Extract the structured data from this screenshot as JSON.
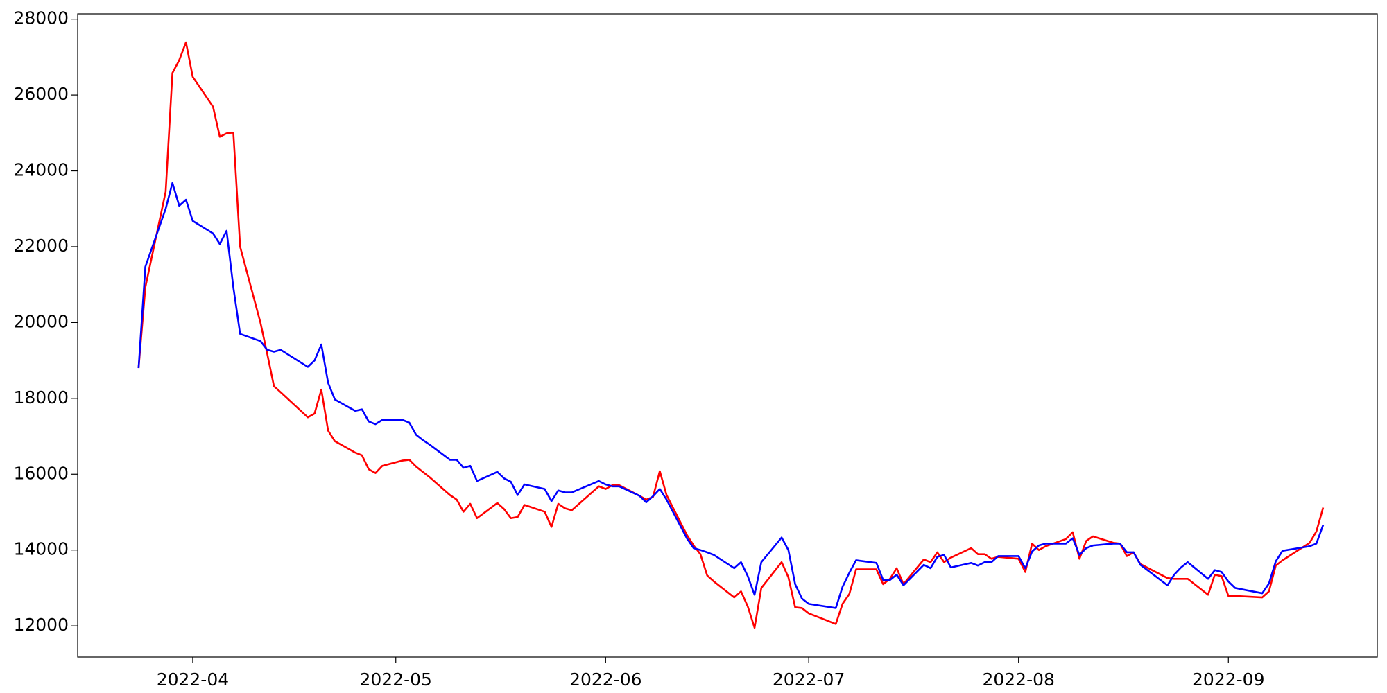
{
  "chart_data": {
    "type": "line",
    "x": [
      "2022-03-24",
      "2022-03-25",
      "2022-03-28",
      "2022-03-29",
      "2022-03-30",
      "2022-03-31",
      "2022-04-01",
      "2022-04-04",
      "2022-04-05",
      "2022-04-06",
      "2022-04-07",
      "2022-04-08",
      "2022-04-11",
      "2022-04-12",
      "2022-04-13",
      "2022-04-14",
      "2022-04-18",
      "2022-04-19",
      "2022-04-20",
      "2022-04-21",
      "2022-04-22",
      "2022-04-25",
      "2022-04-26",
      "2022-04-27",
      "2022-04-28",
      "2022-04-29",
      "2022-05-02",
      "2022-05-03",
      "2022-05-04",
      "2022-05-05",
      "2022-05-06",
      "2022-05-09",
      "2022-05-10",
      "2022-05-11",
      "2022-05-12",
      "2022-05-13",
      "2022-05-16",
      "2022-05-17",
      "2022-05-18",
      "2022-05-19",
      "2022-05-20",
      "2022-05-23",
      "2022-05-24",
      "2022-05-25",
      "2022-05-26",
      "2022-05-27",
      "2022-05-31",
      "2022-06-01",
      "2022-06-02",
      "2022-06-03",
      "2022-06-06",
      "2022-06-07",
      "2022-06-08",
      "2022-06-09",
      "2022-06-10",
      "2022-06-13",
      "2022-06-14",
      "2022-06-15",
      "2022-06-16",
      "2022-06-17",
      "2022-06-20",
      "2022-06-21",
      "2022-06-22",
      "2022-06-23",
      "2022-06-24",
      "2022-06-27",
      "2022-06-28",
      "2022-06-29",
      "2022-06-30",
      "2022-07-01",
      "2022-07-05",
      "2022-07-06",
      "2022-07-07",
      "2022-07-08",
      "2022-07-11",
      "2022-07-12",
      "2022-07-13",
      "2022-07-14",
      "2022-07-15",
      "2022-07-18",
      "2022-07-19",
      "2022-07-20",
      "2022-07-21",
      "2022-07-22",
      "2022-07-25",
      "2022-07-26",
      "2022-07-27",
      "2022-07-28",
      "2022-07-29",
      "2022-08-01",
      "2022-08-02",
      "2022-08-03",
      "2022-08-04",
      "2022-08-05",
      "2022-08-08",
      "2022-08-09",
      "2022-08-10",
      "2022-08-11",
      "2022-08-12",
      "2022-08-15",
      "2022-08-16",
      "2022-08-17",
      "2022-08-18",
      "2022-08-19",
      "2022-08-23",
      "2022-08-24",
      "2022-08-25",
      "2022-08-26",
      "2022-08-29",
      "2022-08-30",
      "2022-08-31",
      "2022-09-01",
      "2022-09-02",
      "2022-09-06",
      "2022-09-07",
      "2022-09-08",
      "2022-09-09",
      "2022-09-13",
      "2022-09-14",
      "2022-09-15"
    ],
    "series": [
      {
        "color": "#ff0000",
        "values": [
          18800,
          20930,
          23450,
          26580,
          26920,
          27390,
          26480,
          25690,
          24900,
          24990,
          25010,
          22000,
          20000,
          19180,
          18320,
          18160,
          17500,
          17600,
          18230,
          17150,
          16870,
          16570,
          16500,
          16130,
          16030,
          16220,
          16360,
          16380,
          16200,
          16060,
          15920,
          15450,
          15330,
          15010,
          15220,
          14840,
          15240,
          15080,
          14840,
          14870,
          15190,
          15010,
          14610,
          15220,
          15100,
          15050,
          15680,
          15610,
          15710,
          15710,
          15430,
          15330,
          15400,
          16080,
          15450,
          14400,
          14120,
          13890,
          13330,
          13170,
          12750,
          12910,
          12510,
          11950,
          13000,
          13680,
          13280,
          12490,
          12470,
          12330,
          12050,
          12580,
          12840,
          13490,
          13490,
          13100,
          13240,
          13520,
          13100,
          13750,
          13680,
          13940,
          13680,
          13800,
          14050,
          13890,
          13890,
          13770,
          13820,
          13770,
          13420,
          14170,
          14000,
          14100,
          14290,
          14470,
          13770,
          14240,
          14360,
          14190,
          14170,
          13840,
          13940,
          13630,
          13260,
          13240,
          13240,
          13240,
          12820,
          13350,
          13310,
          12790,
          12790,
          12750,
          12910,
          13590,
          13730,
          14190,
          14490,
          15120
        ]
      },
      {
        "color": "#0000ff",
        "values": [
          18800,
          21470,
          23000,
          23680,
          23080,
          23240,
          22680,
          22350,
          22070,
          22420,
          20930,
          19700,
          19510,
          19280,
          19230,
          19280,
          18830,
          19000,
          19420,
          18410,
          17970,
          17670,
          17710,
          17390,
          17320,
          17430,
          17430,
          17360,
          17040,
          16900,
          16780,
          16380,
          16380,
          16170,
          16220,
          15820,
          16060,
          15890,
          15800,
          15450,
          15730,
          15610,
          15290,
          15570,
          15520,
          15520,
          15820,
          15730,
          15680,
          15680,
          15430,
          15260,
          15420,
          15610,
          15330,
          14310,
          14050,
          14000,
          13940,
          13870,
          13520,
          13680,
          13310,
          12820,
          13680,
          14330,
          14000,
          13100,
          12720,
          12580,
          12470,
          13030,
          13400,
          13730,
          13660,
          13210,
          13210,
          13350,
          13070,
          13610,
          13520,
          13820,
          13870,
          13540,
          13660,
          13590,
          13680,
          13680,
          13840,
          13840,
          13520,
          13960,
          14120,
          14170,
          14170,
          14310,
          13870,
          14050,
          14120,
          14170,
          14170,
          13940,
          13940,
          13610,
          13070,
          13350,
          13540,
          13680,
          13240,
          13470,
          13420,
          13170,
          13000,
          12860,
          13120,
          13700,
          13980,
          14100,
          14170,
          14660
        ]
      }
    ],
    "xlim": [
      "2022-03-15",
      "2022-09-23"
    ],
    "xticks": [
      {
        "value": "2022-04-01",
        "label": "2022-04"
      },
      {
        "value": "2022-05-01",
        "label": "2022-05"
      },
      {
        "value": "2022-06-01",
        "label": "2022-06"
      },
      {
        "value": "2022-07-01",
        "label": "2022-07"
      },
      {
        "value": "2022-08-01",
        "label": "2022-08"
      },
      {
        "value": "2022-09-01",
        "label": "2022-09"
      }
    ],
    "ylim": [
      11180,
      28140
    ],
    "yticks": [
      12000,
      14000,
      16000,
      18000,
      20000,
      22000,
      24000,
      26000,
      28000
    ]
  }
}
